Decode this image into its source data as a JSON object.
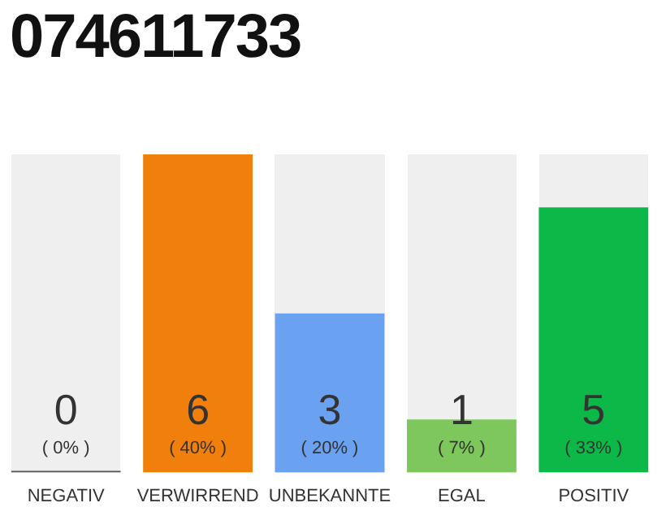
{
  "chart_data": {
    "type": "bar",
    "title": "074611733",
    "categories": [
      "NEGATIV",
      "VERWIRREND",
      "UNBEKANNTE",
      "EGAL",
      "POSITIV"
    ],
    "values": [
      0,
      6,
      3,
      1,
      5
    ],
    "colors": [
      "#555555",
      "#f07f0c",
      "#6aa1f0",
      "#7dc75c",
      "#0cb847"
    ],
    "data_labels": true,
    "annotations": [
      "( 0% )",
      "( 40% )",
      "( 20% )",
      "( 7% )",
      "( 33% )"
    ],
    "grid": false,
    "legend": false
  }
}
